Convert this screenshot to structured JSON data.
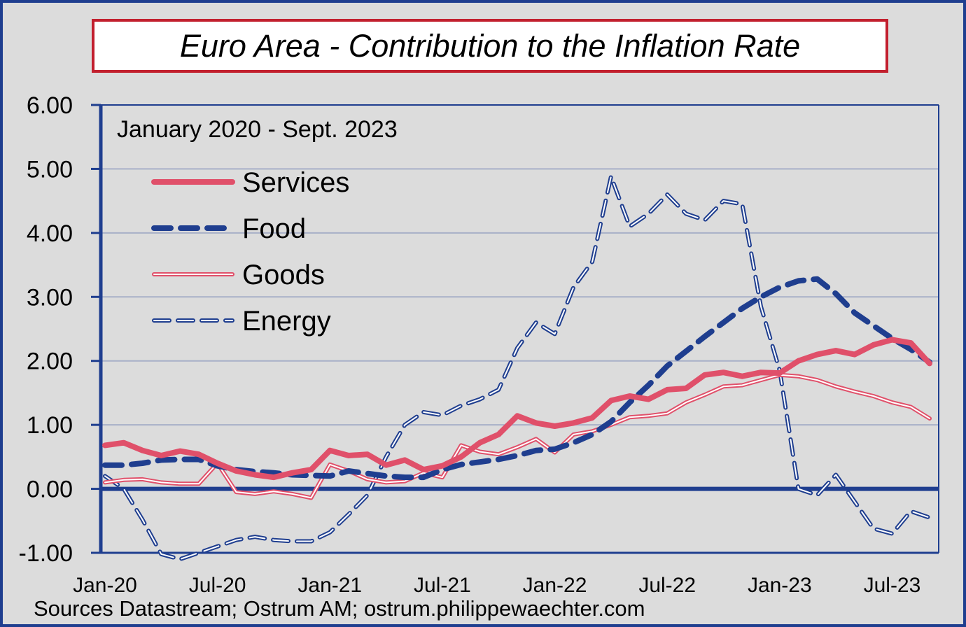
{
  "chart_data": {
    "type": "line",
    "title": "Euro Area - Contribution to the Inflation Rate",
    "subtitle": "January 2020 - Sept. 2023",
    "source": "Sources Datastream; Ostrum AM; ostrum.philippewaechter.com",
    "ylim": [
      -1,
      6
    ],
    "y_ticks": [
      "-1.00",
      "0.00",
      "1.00",
      "2.00",
      "3.00",
      "4.00",
      "5.00",
      "6.00"
    ],
    "x_tick_labels": [
      "Jan-20",
      "Jul-20",
      "Jan-21",
      "Jul-21",
      "Jan-22",
      "Jul-22",
      "Jan-23",
      "Jul-23"
    ],
    "x_tick_months": [
      "2020-01",
      "2020-07",
      "2021-01",
      "2021-07",
      "2022-01",
      "2022-07",
      "2023-01",
      "2023-07"
    ],
    "x": [
      "2020-01",
      "2020-02",
      "2020-03",
      "2020-04",
      "2020-05",
      "2020-06",
      "2020-07",
      "2020-08",
      "2020-09",
      "2020-10",
      "2020-11",
      "2020-12",
      "2021-01",
      "2021-02",
      "2021-03",
      "2021-04",
      "2021-05",
      "2021-06",
      "2021-07",
      "2021-08",
      "2021-09",
      "2021-10",
      "2021-11",
      "2021-12",
      "2022-01",
      "2022-02",
      "2022-03",
      "2022-04",
      "2022-05",
      "2022-06",
      "2022-07",
      "2022-08",
      "2022-09",
      "2022-10",
      "2022-11",
      "2022-12",
      "2023-01",
      "2023-02",
      "2023-03",
      "2023-04",
      "2023-05",
      "2023-06",
      "2023-07",
      "2023-08",
      "2023-09"
    ],
    "grid": true,
    "legend_position": "top-left",
    "series": [
      {
        "name": "Services",
        "color": "#e0506a",
        "style": "thick-solid",
        "values": [
          0.68,
          0.72,
          0.6,
          0.52,
          0.59,
          0.54,
          0.4,
          0.28,
          0.22,
          0.18,
          0.25,
          0.3,
          0.6,
          0.52,
          0.54,
          0.37,
          0.45,
          0.3,
          0.36,
          0.5,
          0.72,
          0.85,
          1.14,
          1.03,
          0.98,
          1.03,
          1.11,
          1.38,
          1.45,
          1.4,
          1.55,
          1.57,
          1.78,
          1.82,
          1.76,
          1.82,
          1.81,
          2.0,
          2.1,
          2.16,
          2.1,
          2.25,
          2.33,
          2.28,
          1.96
        ]
      },
      {
        "name": "Food",
        "color": "#1f3e8f",
        "style": "thick-dashed",
        "values": [
          0.37,
          0.37,
          0.4,
          0.45,
          0.46,
          0.46,
          0.36,
          0.3,
          0.27,
          0.25,
          0.22,
          0.21,
          0.2,
          0.28,
          0.24,
          0.2,
          0.18,
          0.18,
          0.3,
          0.38,
          0.42,
          0.46,
          0.52,
          0.6,
          0.62,
          0.72,
          0.85,
          1.05,
          1.35,
          1.62,
          1.92,
          2.15,
          2.38,
          2.6,
          2.82,
          3.0,
          3.15,
          3.25,
          3.28,
          3.05,
          2.75,
          2.55,
          2.35,
          2.18,
          1.98
        ]
      },
      {
        "name": "Goods",
        "color": "#e0506a",
        "style": "double-thin",
        "values": [
          0.1,
          0.14,
          0.15,
          0.1,
          0.08,
          0.08,
          0.4,
          -0.05,
          -0.08,
          -0.04,
          -0.08,
          -0.14,
          0.38,
          0.28,
          0.15,
          0.1,
          0.12,
          0.25,
          0.18,
          0.68,
          0.58,
          0.54,
          0.65,
          0.78,
          0.57,
          0.85,
          0.9,
          1.0,
          1.12,
          1.14,
          1.18,
          1.35,
          1.47,
          1.6,
          1.62,
          1.7,
          1.78,
          1.76,
          1.7,
          1.6,
          1.52,
          1.45,
          1.35,
          1.28,
          1.1
        ]
      },
      {
        "name": "Energy",
        "color": "#1f3e8f",
        "style": "double-dashed",
        "values": [
          0.2,
          0.0,
          -0.48,
          -1.02,
          -1.1,
          -1.0,
          -0.9,
          -0.8,
          -0.75,
          -0.8,
          -0.82,
          -0.82,
          -0.68,
          -0.4,
          -0.1,
          0.5,
          1.0,
          1.2,
          1.15,
          1.3,
          1.4,
          1.55,
          2.2,
          2.6,
          2.42,
          3.15,
          3.55,
          4.88,
          4.1,
          4.3,
          4.6,
          4.3,
          4.2,
          4.5,
          4.45,
          2.85,
          1.85,
          0.0,
          -0.1,
          0.22,
          -0.2,
          -0.62,
          -0.7,
          -0.35,
          -0.45
        ]
      }
    ]
  }
}
